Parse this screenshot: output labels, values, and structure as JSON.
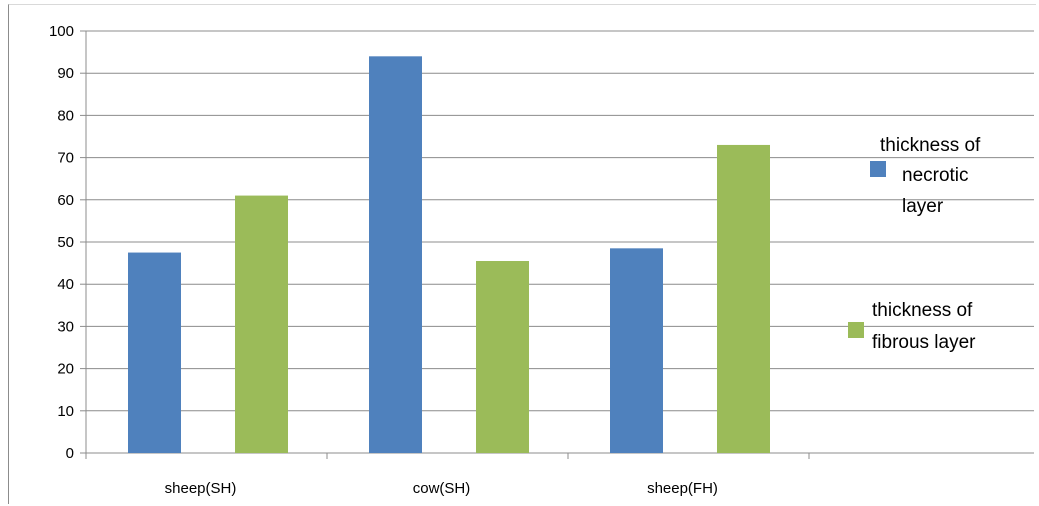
{
  "chart_data": {
    "type": "bar",
    "title": "",
    "xlabel": "",
    "ylabel": "",
    "categories": [
      "sheep(SH)",
      "cow(SH)",
      "sheep(FH)"
    ],
    "ylim": [
      0,
      100
    ],
    "yticks": [
      0,
      10,
      20,
      30,
      40,
      50,
      60,
      70,
      80,
      90,
      100
    ],
    "grid": true,
    "legend_position": "right",
    "series": [
      {
        "name": "thickness of necrotic layer",
        "legend_lines": [
          "thickness of",
          "necrotic",
          "layer"
        ],
        "color": "#4f81bd",
        "values": [
          47.5,
          94,
          48.5
        ]
      },
      {
        "name": "thickness of fibrous layer",
        "legend_lines": [
          "thickness of",
          "fibrous      layer"
        ],
        "color": "#9bbb59",
        "values": [
          61,
          45.5,
          73
        ]
      }
    ]
  }
}
